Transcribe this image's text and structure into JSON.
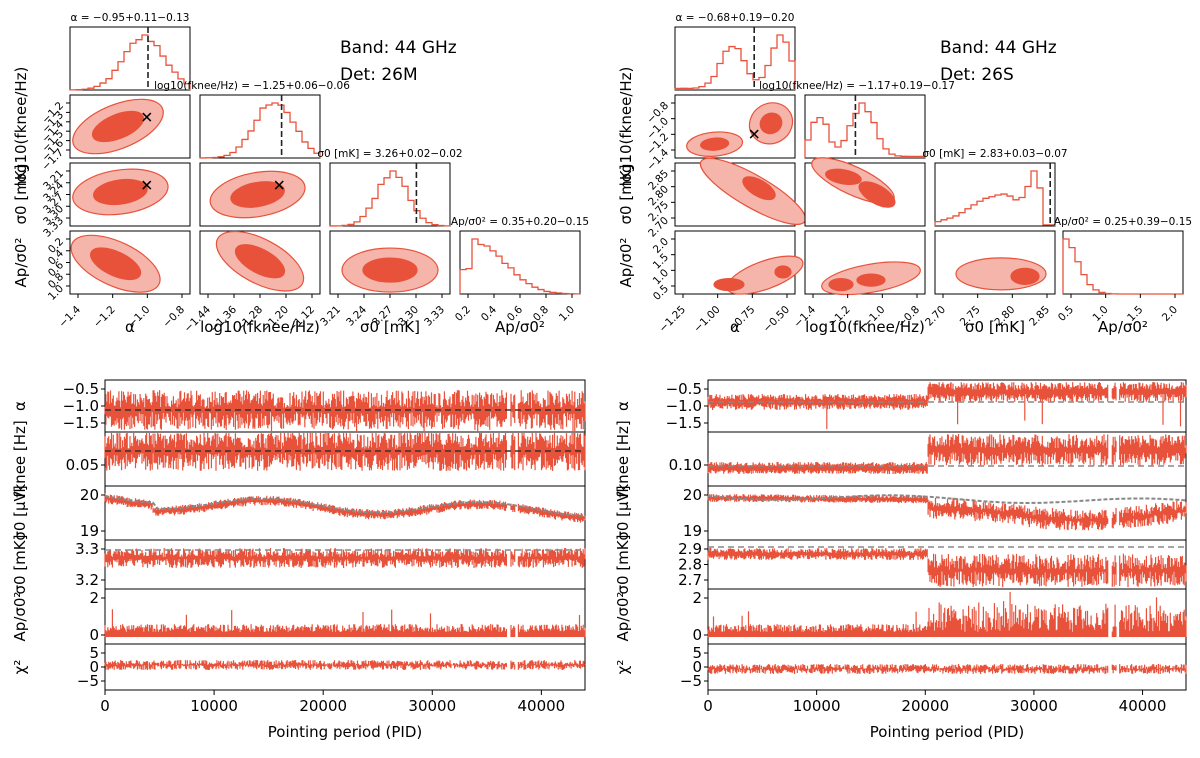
{
  "colors": {
    "accent": "#e8523b",
    "accent_light": "#f5b5aa",
    "ref_dark": "#333333",
    "ref_gray": "#888888"
  },
  "panels": [
    {
      "band_label": "Band: 44 GHz",
      "det_label": "Det: 26M",
      "corner": {
        "titles": [
          "α = −0.95+0.11−0.13",
          "log10(fknee/Hz) = −1.25+0.06−0.06",
          "σ0 [mK] = 3.26+0.02−0.02",
          "Ap/σ0² = 0.35+0.20−0.15"
        ],
        "xlabels": [
          "α",
          "log10(fknee/Hz)",
          "σ0 [mK]",
          "Ap/σ0²"
        ],
        "ylabels": [
          "",
          "log10(fknee/Hz)",
          "σ0 [mK]",
          "Ap/σ0²"
        ],
        "xticks": [
          [
            "−1.4",
            "−1.2",
            "−1.0",
            "−0.8"
          ],
          [
            "−1.44",
            "−1.36",
            "−1.28",
            "−1.20",
            "−1.12"
          ],
          [
            "3.21",
            "3.24",
            "3.27",
            "3.30",
            "3.33"
          ],
          [
            "0.2",
            "0.4",
            "0.6",
            "0.8",
            "1.0"
          ]
        ],
        "yticks": [
          [],
          [
            "−1.2",
            "−1.3",
            "−1.4",
            "−1.5",
            "−1.6",
            "−1.7"
          ],
          [
            "3.21",
            "3.24",
            "3.27",
            "3.30",
            "3.33"
          ],
          [
            "0.2",
            "0.4",
            "0.6",
            "0.8",
            "1.0"
          ]
        ],
        "truth": [
          -0.92,
          -1.22,
          3.285,
          0.35
        ]
      },
      "timeseries": {
        "xlabel": "Pointing period (PID)",
        "xticks": [
          "0",
          "10000",
          "20000",
          "30000",
          "40000"
        ],
        "rows": [
          {
            "label": "α",
            "ticks": [
              "−0.5",
              "−1.0",
              "−1.5"
            ]
          },
          {
            "label": "fknee [Hz]",
            "ticks": [
              "0.05"
            ]
          },
          {
            "label": "σ0 [μV]",
            "ticks": [
              "20",
              "19"
            ]
          },
          {
            "label": "σ0 [mK]",
            "ticks": [
              "3.3",
              "3.2"
            ]
          },
          {
            "label": "Ap/σ0²",
            "ticks": [
              "2",
              "0"
            ]
          },
          {
            "label": "χ²",
            "ticks": [
              "5",
              "0",
              "−5"
            ]
          }
        ]
      }
    },
    {
      "band_label": "Band: 44 GHz",
      "det_label": "Det: 26S",
      "corner": {
        "titles": [
          "α = −0.68+0.19−0.20",
          "log10(fknee/Hz) = −1.17+0.19−0.17",
          "σ0 [mK] = 2.83+0.03−0.07",
          "Ap/σ0² = 0.25+0.39−0.15"
        ],
        "xlabels": [
          "α",
          "log10(fknee/Hz)",
          "σ0 [mK]",
          "Ap/σ0²"
        ],
        "ylabels": [
          "",
          "log10(fknee/Hz)",
          "σ0 [mK]",
          "Ap/σ0²"
        ],
        "xticks": [
          [
            "−1.25",
            "−1.00",
            "−0.75",
            "−0.50"
          ],
          [
            "−1.4",
            "−1.2",
            "−1.0",
            "−0.8"
          ],
          [
            "2.70",
            "2.75",
            "2.80",
            "2.85"
          ],
          [
            "0.5",
            "1.0",
            "1.5",
            "2.0"
          ]
        ],
        "yticks": [
          [],
          [
            "−0.8",
            "−1.0",
            "−1.2",
            "−1.4"
          ],
          [
            "2.85",
            "2.80",
            "2.75",
            "2.70"
          ],
          [
            "2.0",
            "1.5",
            "1.0",
            "0.5"
          ]
        ],
        "truth": [
          -0.78,
          -1.2,
          2.88,
          0.25
        ]
      },
      "timeseries": {
        "xlabel": "Pointing period (PID)",
        "xticks": [
          "0",
          "10000",
          "20000",
          "30000",
          "40000"
        ],
        "rows": [
          {
            "label": "α",
            "ticks": [
              "−0.5",
              "−1.0",
              "−1.5"
            ]
          },
          {
            "label": "fknee [Hz]",
            "ticks": [
              "0.10"
            ]
          },
          {
            "label": "σ0 [μV]",
            "ticks": [
              "20",
              "19"
            ]
          },
          {
            "label": "σ0 [mK]",
            "ticks": [
              "2.9",
              "2.8",
              "2.7"
            ]
          },
          {
            "label": "Ap/σ0²",
            "ticks": [
              "2",
              "0"
            ]
          },
          {
            "label": "χ²",
            "ticks": [
              "5",
              "0",
              "−5"
            ]
          }
        ]
      }
    }
  ],
  "chart_data": [
    {
      "type": "histogram",
      "title": "Band: 44 GHz, Det: 26M — corner plot",
      "parameters": [
        "α",
        "log10(fknee/Hz)",
        "σ0 [mK]",
        "Ap/σ0²"
      ],
      "medians": [
        -0.95,
        -1.25,
        3.26,
        0.35
      ],
      "errors_plus": [
        0.11,
        0.06,
        0.02,
        0.2
      ],
      "errors_minus": [
        0.13,
        0.06,
        0.02,
        0.15
      ],
      "reference_values": [
        -0.92,
        -1.22,
        3.285,
        null
      ],
      "ranges": [
        [
          -1.45,
          -0.7
        ],
        [
          -1.46,
          -1.1
        ],
        [
          3.2,
          3.34
        ],
        [
          0.0,
          1.05
        ]
      ]
    },
    {
      "type": "histogram",
      "title": "Band: 44 GHz, Det: 26S — corner plot",
      "parameters": [
        "α",
        "log10(fknee/Hz)",
        "σ0 [mK]",
        "Ap/σ0²"
      ],
      "medians": [
        -0.68,
        -1.17,
        2.83,
        0.25
      ],
      "errors_plus": [
        0.19,
        0.19,
        0.03,
        0.39
      ],
      "errors_minus": [
        0.2,
        0.17,
        0.07,
        0.15
      ],
      "reference_values": [
        -0.78,
        -1.2,
        2.88,
        null
      ],
      "ranges": [
        [
          -1.35,
          -0.45
        ],
        [
          -1.55,
          -0.7
        ],
        [
          2.66,
          2.91
        ],
        [
          0.0,
          2.1
        ]
      ]
    },
    {
      "type": "line",
      "title": "26M time series vs Pointing period (PID)",
      "xlim": [
        0,
        44000
      ],
      "series": [
        {
          "name": "α",
          "ylim": [
            -1.9,
            -0.35
          ],
          "reference": -0.95,
          "mean": -0.95
        },
        {
          "name": "fknee [Hz]",
          "ylim": [
            0.01,
            0.11
          ],
          "reference": 0.075,
          "mean": 0.075
        },
        {
          "name": "σ0 [μV]",
          "ylim": [
            18.5,
            20.4
          ],
          "reference_trend": true
        },
        {
          "name": "σ0 [mK]",
          "ylim": [
            3.13,
            3.36
          ],
          "reference": 3.3,
          "mean": 3.27
        },
        {
          "name": "Ap/σ0²",
          "ylim": [
            -0.3,
            2.4
          ],
          "mean": 0.4
        },
        {
          "name": "χ²",
          "ylim": [
            -7,
            7
          ],
          "mean": 0.5
        }
      ]
    },
    {
      "type": "line",
      "title": "26S time series vs Pointing period (PID)",
      "xlim": [
        0,
        44000
      ],
      "series": [
        {
          "name": "α",
          "ylim": [
            -1.9,
            -0.3
          ],
          "reference": -0.8,
          "mean_before_20000": -0.85,
          "mean_after_20000": -0.5
        },
        {
          "name": "fknee [Hz]",
          "ylim": [
            0.04,
            0.16
          ],
          "reference": 0.09
        },
        {
          "name": "σ0 [μV]",
          "ylim": [
            18.3,
            20.6
          ],
          "reference_trend": true
        },
        {
          "name": "σ0 [mK]",
          "ylim": [
            2.62,
            2.95
          ],
          "reference": 2.89,
          "mean_before_20000": 2.87,
          "mean_after_20000": 2.78
        },
        {
          "name": "Ap/σ0²",
          "ylim": [
            -0.3,
            2.4
          ],
          "mean_before_20000": 0.3,
          "mean_after_20000": 0.7
        },
        {
          "name": "χ²",
          "ylim": [
            -7,
            7
          ],
          "mean": -0.3
        }
      ]
    }
  ]
}
